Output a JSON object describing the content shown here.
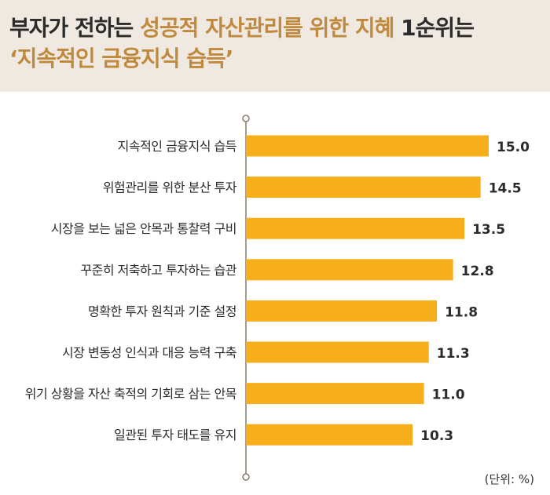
{
  "header": {
    "line1_part1": "부자가 전하는 ",
    "line1_accent": "성공적 자산관리를 위한 지혜",
    "line1_part2": " 1순위는",
    "line2_accent": "‘지속적인 금융지식 습득’"
  },
  "unit_label": "(단위: %)",
  "colors": {
    "bar": "#f7ae1b",
    "header_bg": "#efe9e2",
    "accent": "#c08a3e",
    "axis": "#8a7c6c"
  },
  "chart_data": {
    "type": "bar",
    "orientation": "horizontal",
    "categories": [
      "지속적인 금융지식 습득",
      "위험관리를 위한 분산 투자",
      "시장을 보는 넓은 안목과 통찰력 구비",
      "꾸준히 저축하고 투자하는 습관",
      "명확한 투자 원칙과 기준 설정",
      "시장 변동성 인식과 대응 능력 구축",
      "위기 상황을 자산 축적의 기회로 삼는 안목",
      "일관된 투자 태도를 유지"
    ],
    "values": [
      15.0,
      14.5,
      13.5,
      12.8,
      11.8,
      11.3,
      11.0,
      10.3
    ],
    "data_labels": [
      "15.0",
      "14.5",
      "13.5",
      "12.8",
      "11.8",
      "11.3",
      "11.0",
      "10.3"
    ],
    "xlim": [
      0,
      17.5
    ],
    "grid": false,
    "title": "",
    "xlabel": "",
    "ylabel": ""
  }
}
